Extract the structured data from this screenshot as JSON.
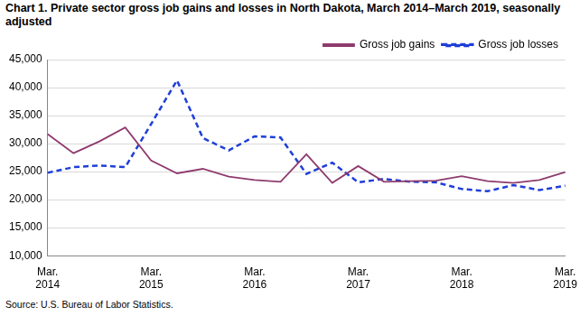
{
  "chart_data": {
    "type": "line",
    "title": "Chart 1. Private sector gross job gains and losses in North Dakota, March 2014–March 2019, seasonally adjusted",
    "source": "Source: U.S. Bureau of Labor Statistics.",
    "categories": [
      "Mar. 2014",
      null,
      null,
      null,
      "Mar. 2015",
      null,
      null,
      null,
      "Mar. 2016",
      null,
      null,
      null,
      "Mar. 2017",
      null,
      null,
      null,
      "Mar. 2018",
      null,
      null,
      null,
      "Mar. 2019"
    ],
    "series": [
      {
        "name": "Gross job gains",
        "color": "#8e3b6e",
        "line_style": "solid",
        "marker": "none",
        "values": [
          31700,
          28300,
          30400,
          32900,
          27000,
          24700,
          25500,
          24100,
          23500,
          23200,
          28100,
          23000,
          26000,
          23200,
          23300,
          23400,
          24200,
          23300,
          23000,
          23500,
          24900
        ]
      },
      {
        "name": "Gross job losses",
        "color": "#1f3fd8",
        "line_style": "dashed",
        "marker": "none",
        "values": [
          24800,
          25800,
          26100,
          25800,
          33500,
          41300,
          31000,
          28800,
          31300,
          31100,
          24600,
          26600,
          23100,
          23700,
          23200,
          23100,
          21900,
          21500,
          22600,
          21700,
          22500
        ]
      }
    ],
    "ylim": [
      10000,
      45000
    ],
    "yticks": [
      {
        "value": 10000,
        "label": "10,000"
      },
      {
        "value": 15000,
        "label": "15,000"
      },
      {
        "value": 20000,
        "label": "20,000"
      },
      {
        "value": 25000,
        "label": "25,000"
      },
      {
        "value": 30000,
        "label": "30,000"
      },
      {
        "value": 35000,
        "label": "35,000"
      },
      {
        "value": 40000,
        "label": "40,000"
      },
      {
        "value": 45000,
        "label": "45,000"
      }
    ],
    "grid": true,
    "legend": "top-right"
  }
}
